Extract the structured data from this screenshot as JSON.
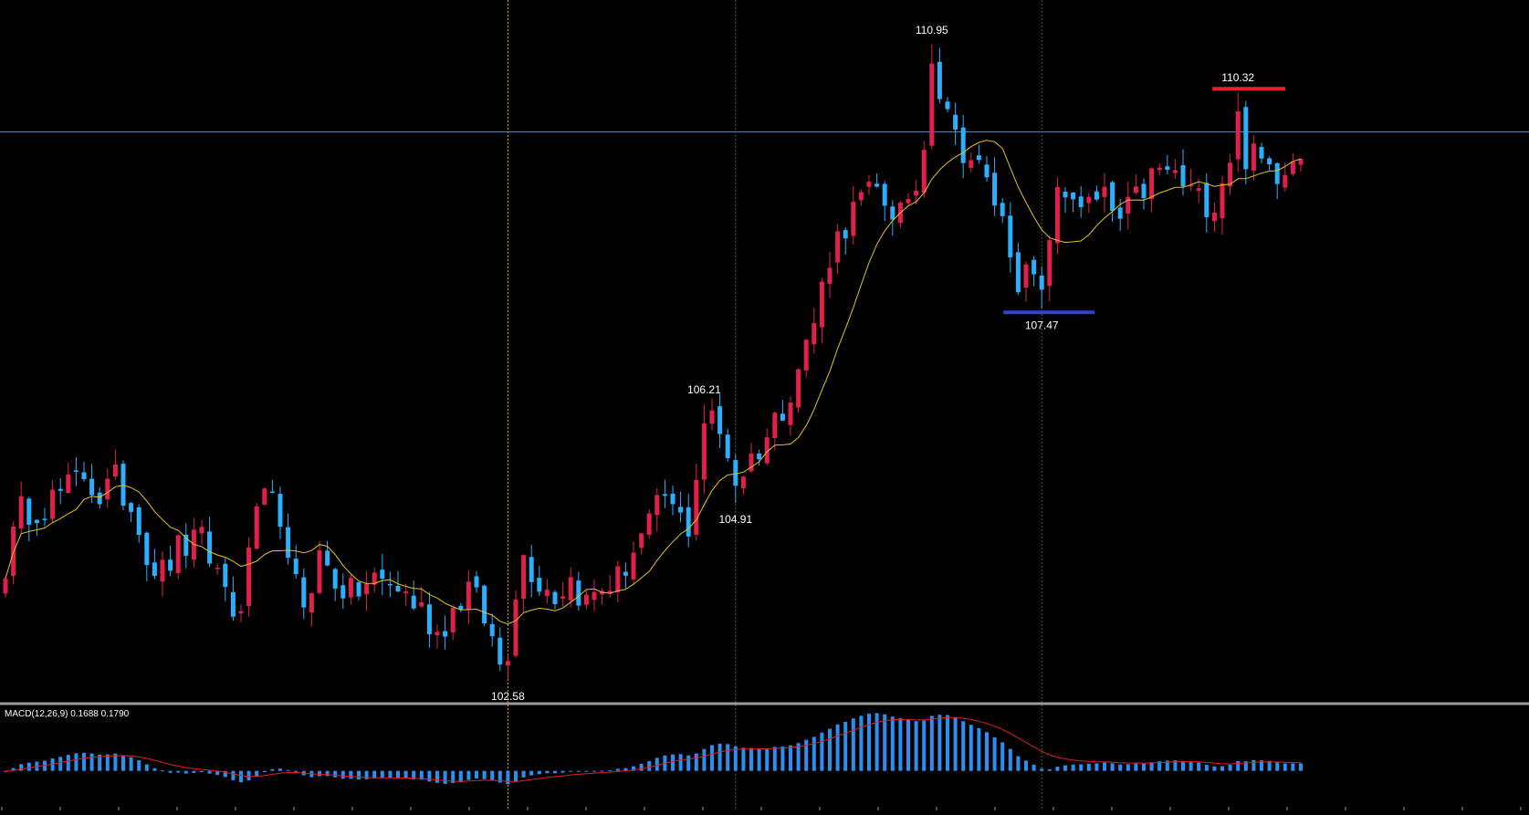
{
  "chart_data": [
    {
      "type": "candlestick",
      "panel": "main",
      "title": "",
      "y_range": [
        102.4,
        111.2
      ],
      "horizontal_line": 109.8,
      "colors": {
        "up": "#e0204a",
        "down": "#2ab0ff",
        "ma": "#e6c21a",
        "hline": "#5a7fb0",
        "vline_main": "#d4a51c",
        "vline_secondary": "#2e6b2e",
        "high_marker": "#e52030",
        "low_marker": "#3040d8",
        "label": "#ffffff",
        "separator": "#9a9a9a"
      },
      "annotations": [
        {
          "label": "110.95",
          "kind": "text",
          "index": 118,
          "value": 110.95,
          "pos": "above"
        },
        {
          "label": "110.32",
          "kind": "high-bar",
          "index": 157,
          "value": 110.32,
          "pos": "above"
        },
        {
          "label": "107.47",
          "kind": "low-bar",
          "index": 132,
          "value": 107.47,
          "pos": "below"
        },
        {
          "label": "106.21",
          "kind": "text",
          "index": 89,
          "value": 106.21,
          "pos": "above"
        },
        {
          "label": "104.91",
          "kind": "text",
          "index": 93,
          "value": 104.91,
          "pos": "below"
        },
        {
          "label": "102.58",
          "kind": "text",
          "index": 64,
          "value": 102.58,
          "pos": "below"
        }
      ],
      "vertical_lines": [
        {
          "index": 64,
          "style": "main"
        },
        {
          "index": 93,
          "style": "secondary"
        },
        {
          "index": 132,
          "style": "secondary"
        }
      ]
    },
    {
      "type": "histogram+line",
      "panel": "indicator",
      "title": "MACD(12,26,9) 0.1688 0.1790",
      "indicator": "MACD",
      "params": [
        12,
        26,
        9
      ],
      "macd_value": 0.1688,
      "signal_value": 0.179,
      "y_range": [
        -0.35,
        0.7
      ],
      "colors": {
        "histogram": "#2a8ff0",
        "signal": "#e02020"
      }
    }
  ],
  "price_key_points": [
    [
      0,
      104.1
    ],
    [
      2,
      104.8
    ],
    [
      5,
      104.9
    ],
    [
      8,
      105.1
    ],
    [
      10,
      105.3
    ],
    [
      12,
      105.0
    ],
    [
      14,
      105.2
    ],
    [
      17,
      104.7
    ],
    [
      18,
      104.2
    ],
    [
      20,
      104.0
    ],
    [
      22,
      104.3
    ],
    [
      25,
      104.4
    ],
    [
      28,
      103.8
    ],
    [
      30,
      103.3
    ],
    [
      31,
      104.4
    ],
    [
      33,
      104.9
    ],
    [
      35,
      104.8
    ],
    [
      36,
      104.0
    ],
    [
      38,
      103.6
    ],
    [
      40,
      104.2
    ],
    [
      42,
      103.9
    ],
    [
      44,
      103.7
    ],
    [
      47,
      103.9
    ],
    [
      50,
      103.8
    ],
    [
      53,
      103.5
    ],
    [
      55,
      103.2
    ],
    [
      57,
      103.5
    ],
    [
      59,
      103.8
    ],
    [
      61,
      103.4
    ],
    [
      63,
      102.8
    ],
    [
      64,
      103.1
    ],
    [
      65,
      103.8
    ],
    [
      66,
      104.2
    ],
    [
      68,
      103.9
    ],
    [
      70,
      103.7
    ],
    [
      72,
      103.9
    ],
    [
      74,
      103.6
    ],
    [
      76,
      103.8
    ],
    [
      78,
      103.9
    ],
    [
      80,
      104.3
    ],
    [
      82,
      104.6
    ],
    [
      84,
      105.0
    ],
    [
      85,
      104.8
    ],
    [
      87,
      104.6
    ],
    [
      88,
      105.3
    ],
    [
      89,
      105.9
    ],
    [
      90,
      106.0
    ],
    [
      92,
      105.6
    ],
    [
      93,
      105.2
    ],
    [
      95,
      105.5
    ],
    [
      97,
      105.8
    ],
    [
      99,
      106.2
    ],
    [
      101,
      106.7
    ],
    [
      103,
      107.3
    ],
    [
      105,
      108.2
    ],
    [
      107,
      108.6
    ],
    [
      109,
      108.9
    ],
    [
      111,
      109.0
    ],
    [
      113,
      108.8
    ],
    [
      115,
      108.7
    ],
    [
      116,
      109.1
    ],
    [
      117,
      109.6
    ],
    [
      118,
      110.6
    ],
    [
      119,
      110.4
    ],
    [
      120,
      110.2
    ],
    [
      121,
      109.7
    ],
    [
      122,
      109.6
    ],
    [
      124,
      109.3
    ],
    [
      126,
      108.9
    ],
    [
      128,
      108.3
    ],
    [
      129,
      107.9
    ],
    [
      131,
      107.85
    ],
    [
      132,
      108.1
    ],
    [
      134,
      108.9
    ],
    [
      136,
      109.0
    ],
    [
      138,
      108.8
    ],
    [
      140,
      108.9
    ],
    [
      142,
      108.6
    ],
    [
      144,
      108.9
    ],
    [
      146,
      109.2
    ],
    [
      148,
      109.3
    ],
    [
      150,
      109.1
    ],
    [
      152,
      108.9
    ],
    [
      154,
      108.9
    ],
    [
      156,
      109.5
    ],
    [
      157,
      109.8
    ],
    [
      158,
      109.5
    ],
    [
      160,
      109.4
    ],
    [
      162,
      109.3
    ],
    [
      164,
      109.5
    ],
    [
      165,
      109.6
    ]
  ],
  "candle_count": 166,
  "ma_period": 10,
  "num_ticks": 27
}
